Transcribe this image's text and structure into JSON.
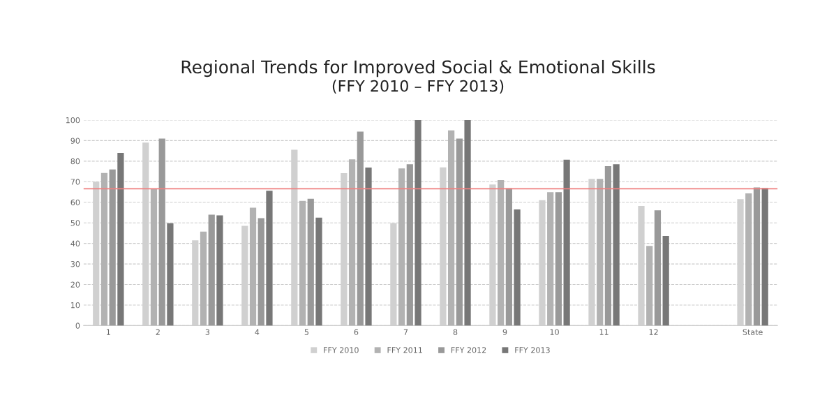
{
  "chart_data": {
    "type": "bar",
    "title": "Regional Trends for Improved Social & Emotional Skills",
    "subtitle": "(FFY 2010 – FFY 2013)",
    "categories": [
      "1",
      "2",
      "3",
      "4",
      "5",
      "6",
      "7",
      "8",
      "9",
      "10",
      "11",
      "12",
      null,
      "State"
    ],
    "series": [
      {
        "name": "FFY 2010",
        "color": "#d0d0d0",
        "values": [
          70,
          89,
          41.5,
          48.5,
          85.6,
          74.2,
          49.8,
          77,
          68.7,
          61,
          71.4,
          58.2,
          null,
          61.5
        ]
      },
      {
        "name": "FFY 2011",
        "color": "#b2b2b2",
        "values": [
          74.3,
          66.7,
          45.7,
          57.4,
          60.7,
          80.9,
          76.5,
          95,
          70.8,
          64.9,
          71.4,
          38.8,
          null,
          64.3
        ]
      },
      {
        "name": "FFY 2012",
        "color": "#999999",
        "values": [
          76,
          91,
          54,
          52.3,
          61.7,
          94.4,
          78.5,
          91,
          66.9,
          64.9,
          77.6,
          56.1,
          null,
          67.2
        ]
      },
      {
        "name": "FFY 2013",
        "color": "#777777",
        "values": [
          84,
          49.8,
          53.6,
          65.6,
          52.5,
          76.9,
          100,
          100,
          56.5,
          80.7,
          78.5,
          43.6,
          null,
          67
        ]
      }
    ],
    "ylim": [
      0,
      100
    ],
    "yticks": [
      0,
      10,
      20,
      30,
      40,
      50,
      60,
      70,
      80,
      90,
      100
    ],
    "ref_lines": [
      {
        "axis": "y",
        "value": 66.6,
        "color": "#f08080",
        "line_style": "solid"
      }
    ],
    "grid": "y",
    "legend": "bottom"
  }
}
